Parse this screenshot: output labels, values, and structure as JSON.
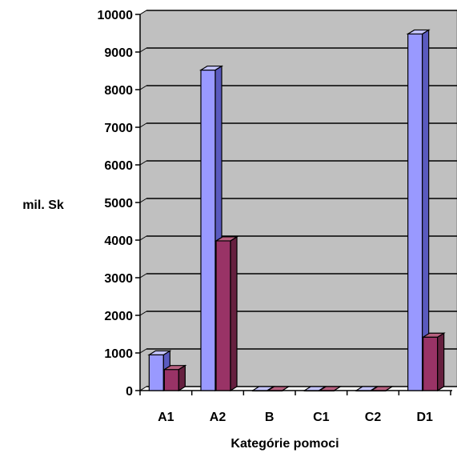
{
  "chart_data": {
    "type": "bar",
    "title": "",
    "xlabel": "Kategórie pomoci",
    "ylabel": "mil. Sk",
    "categories": [
      "A1",
      "A2",
      "B",
      "C1",
      "C2",
      "D1"
    ],
    "series": [
      {
        "values": [
          950,
          8520,
          0,
          0,
          0,
          9480
        ]
      },
      {
        "values": [
          560,
          3980,
          0,
          0,
          0,
          1420
        ]
      }
    ],
    "ylim": [
      0,
      10000
    ],
    "yticks": [
      "0",
      "1000",
      "2000",
      "3000",
      "4000",
      "5000",
      "6000",
      "7000",
      "8000",
      "9000",
      "10000"
    ],
    "grid": true,
    "legend": "none",
    "three_d": true,
    "colors": {
      "series_front": [
        "#9999ff",
        "#993366"
      ],
      "series_side": [
        "#5a5abf",
        "#66203f"
      ],
      "series_top": [
        "#c4c4ff",
        "#b7607f"
      ],
      "plot_wall": "#c0c0c0",
      "plot_wall_edge": "#808080",
      "gridline": "#000000"
    }
  }
}
